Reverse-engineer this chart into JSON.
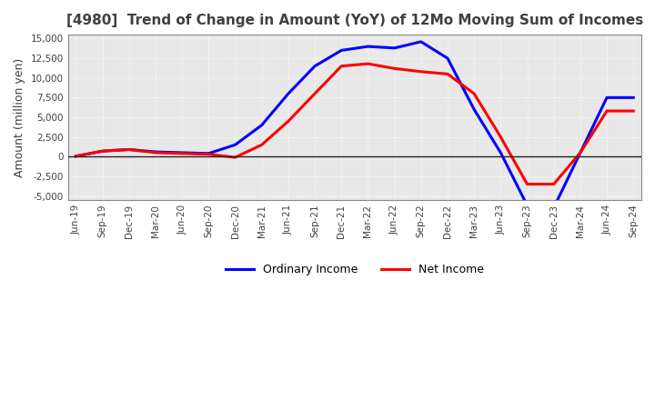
{
  "title": "[4980]  Trend of Change in Amount (YoY) of 12Mo Moving Sum of Incomes",
  "ylabel": "Amount (million yen)",
  "ylim": [
    -5500,
    15500
  ],
  "yticks": [
    -5000,
    -2500,
    0,
    2500,
    5000,
    7500,
    10000,
    12500,
    15000
  ],
  "x_labels": [
    "Jun-19",
    "Sep-19",
    "Dec-19",
    "Mar-20",
    "Jun-20",
    "Sep-20",
    "Dec-20",
    "Mar-21",
    "Jun-21",
    "Sep-21",
    "Dec-21",
    "Mar-22",
    "Jun-22",
    "Sep-22",
    "Dec-22",
    "Mar-23",
    "Jun-23",
    "Sep-23",
    "Dec-23",
    "Mar-24",
    "Jun-24",
    "Sep-24"
  ],
  "ordinary_income": [
    50,
    700,
    900,
    600,
    500,
    400,
    1500,
    4000,
    8000,
    11500,
    13500,
    14000,
    13800,
    14600,
    12500,
    6000,
    500,
    -6200,
    -6500,
    500,
    7500,
    7500
  ],
  "net_income": [
    50,
    700,
    900,
    500,
    400,
    300,
    -100,
    1500,
    4500,
    8000,
    11500,
    11800,
    11200,
    10800,
    10500,
    8000,
    2500,
    -3500,
    -3500,
    500,
    5800,
    5800
  ],
  "ordinary_color": "#0000ff",
  "net_color": "#ff0000",
  "background_color": "#ffffff",
  "plot_bg_color": "#e8e8e8",
  "grid_color": "#ffffff",
  "title_color": "#404040",
  "legend_labels": [
    "Ordinary Income",
    "Net Income"
  ]
}
